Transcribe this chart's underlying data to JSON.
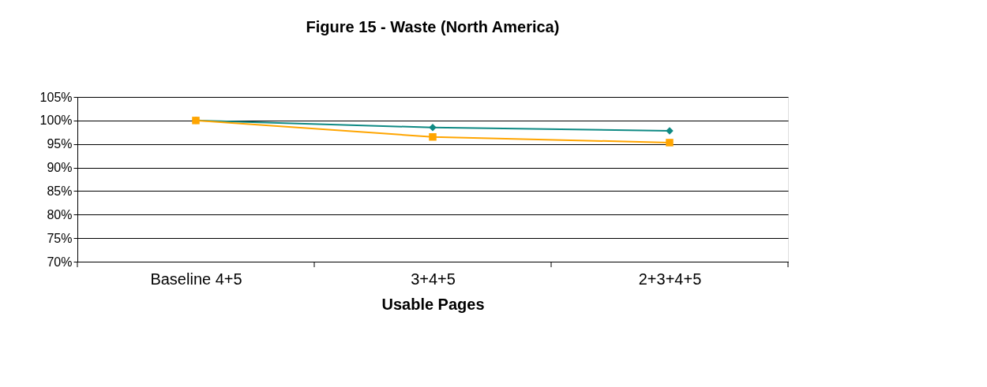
{
  "chart_data": {
    "type": "line",
    "title": "Figure 15 - Waste (North America)",
    "xlabel": "Usable Pages",
    "categories": [
      "Baseline 4+5",
      "3+4+5",
      "2+3+4+5"
    ],
    "series": [
      {
        "color": "#0f8a84",
        "marker": "diamond",
        "values": [
          1.0,
          0.985,
          0.978
        ]
      },
      {
        "color": "#ffa500",
        "marker": "square",
        "values": [
          1.0,
          0.965,
          0.953
        ]
      }
    ],
    "ylim": [
      0.7,
      1.05
    ],
    "yticks": [
      {
        "value": 0.7,
        "label": "70%"
      },
      {
        "value": 0.75,
        "label": "75%"
      },
      {
        "value": 0.8,
        "label": "80%"
      },
      {
        "value": 0.85,
        "label": "85%"
      },
      {
        "value": 0.9,
        "label": "90%"
      },
      {
        "value": 0.95,
        "label": "95%"
      },
      {
        "value": 1.0,
        "label": "100%"
      },
      {
        "value": 1.05,
        "label": "105%"
      }
    ],
    "grid": "y",
    "line_style": "solid"
  }
}
